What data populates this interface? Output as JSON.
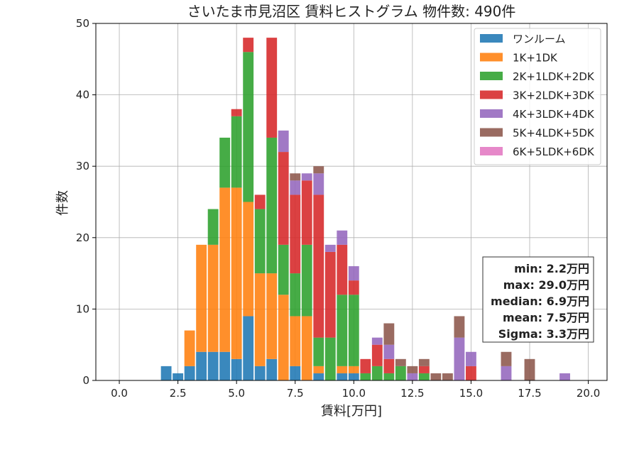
{
  "chart_data": {
    "type": "bar",
    "stacked": true,
    "title": "さいたま市見沼区 賃料ヒストグラム 物件数: 490件",
    "xlabel": "賃料[万円]",
    "ylabel": "件数",
    "xlim": [
      -1.0,
      20.8
    ],
    "ylim": [
      0,
      50
    ],
    "xticks": [
      0.0,
      2.5,
      5.0,
      7.5,
      10.0,
      12.5,
      15.0,
      17.5,
      20.0
    ],
    "xtick_labels": [
      "0.0",
      "2.5",
      "5.0",
      "7.5",
      "10.0",
      "12.5",
      "15.0",
      "17.5",
      "20.0"
    ],
    "yticks": [
      0,
      10,
      20,
      30,
      40,
      50
    ],
    "ytick_labels": [
      "0",
      "10",
      "20",
      "30",
      "40",
      "50"
    ],
    "grid": true,
    "legend_position": "top-right",
    "bin_width": 0.5,
    "bins": [
      2.0,
      2.5,
      3.0,
      3.5,
      4.0,
      4.5,
      5.0,
      5.5,
      6.0,
      6.5,
      7.0,
      7.5,
      8.0,
      8.5,
      9.0,
      9.5,
      10.0,
      10.5,
      11.0,
      11.5,
      12.0,
      12.5,
      13.0,
      13.5,
      14.0,
      14.5,
      15.0,
      15.5,
      16.0,
      16.5,
      17.0,
      17.5,
      18.0,
      18.5,
      19.0,
      19.5
    ],
    "series": [
      {
        "name": "ワンルーム",
        "color": "#1f77b4",
        "values": [
          2,
          1,
          2,
          4,
          4,
          4,
          3,
          9,
          2,
          3,
          0,
          2,
          0,
          1,
          0,
          1,
          1,
          0,
          0,
          0,
          0,
          0,
          0,
          0,
          0,
          0,
          0,
          0,
          0,
          0,
          0,
          0,
          0,
          0,
          0,
          0
        ]
      },
      {
        "name": "1K+1DK",
        "color": "#ff7f0e",
        "values": [
          0,
          0,
          5,
          15,
          15,
          23,
          24,
          16,
          13,
          12,
          12,
          7,
          9,
          1,
          0,
          1,
          1,
          0,
          0,
          0,
          0,
          0,
          0,
          0,
          0,
          0,
          0,
          0,
          0,
          0,
          0,
          0,
          0,
          0,
          0,
          0
        ]
      },
      {
        "name": "2K+1LDK+2DK",
        "color": "#2ca02c",
        "values": [
          0,
          0,
          0,
          0,
          5,
          7,
          10,
          21,
          9,
          19,
          7,
          6,
          10,
          4,
          6,
          10,
          10,
          1,
          2,
          1,
          2,
          0,
          1,
          0,
          0,
          0,
          0,
          0,
          0,
          0,
          0,
          0,
          0,
          0,
          0,
          0
        ]
      },
      {
        "name": "3K+2LDK+3DK",
        "color": "#d62728",
        "values": [
          0,
          0,
          0,
          0,
          0,
          0,
          1,
          2,
          2,
          14,
          13,
          11,
          9,
          20,
          12,
          7,
          2,
          2,
          3,
          2,
          0,
          0,
          1,
          0,
          0,
          0,
          2,
          0,
          0,
          0,
          0,
          0,
          0,
          0,
          0,
          0
        ]
      },
      {
        "name": "4K+3LDK+4DK",
        "color": "#9467bd",
        "values": [
          0,
          0,
          0,
          0,
          0,
          0,
          0,
          0,
          0,
          0,
          3,
          2,
          1,
          3,
          1,
          2,
          2,
          0,
          1,
          2,
          0,
          1,
          0,
          0,
          0,
          6,
          2,
          0,
          0,
          2,
          0,
          0,
          0,
          0,
          1,
          0
        ]
      },
      {
        "name": "5K+4LDK+5DK",
        "color": "#8c564b",
        "values": [
          0,
          0,
          0,
          0,
          0,
          0,
          0,
          0,
          0,
          0,
          0,
          1,
          0,
          1,
          0,
          0,
          0,
          0,
          0,
          3,
          1,
          1,
          1,
          1,
          1,
          3,
          0,
          0,
          0,
          2,
          0,
          3,
          0,
          0,
          0,
          0
        ]
      },
      {
        "name": "6K+5LDK+6DK",
        "color": "#e377c2",
        "values": [
          0,
          0,
          0,
          0,
          0,
          0,
          0,
          0,
          0,
          0,
          0,
          0,
          0,
          0,
          0,
          0,
          0,
          0,
          0,
          0,
          0,
          0,
          0,
          0,
          0,
          0,
          0,
          0,
          0,
          0,
          0,
          0,
          0,
          0,
          0,
          0
        ]
      }
    ],
    "stats": [
      {
        "text": "min: 2.2万円"
      },
      {
        "text": "max: 29.0万円"
      },
      {
        "text": "median: 6.9万円"
      },
      {
        "text": "mean: 7.5万円"
      },
      {
        "text": "Sigma: 3.3万円"
      }
    ]
  }
}
